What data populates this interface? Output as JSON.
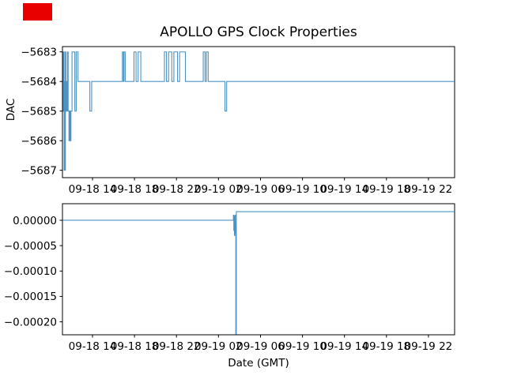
{
  "figure": {
    "title": "APOLLO GPS Clock Properties",
    "xlabel": "Date (GMT)",
    "background": "#ffffff",
    "marker_color": "#e80000"
  },
  "chart_data": [
    {
      "type": "line",
      "name": "dac-vs-time",
      "title": "APOLLO GPS Clock Properties",
      "ylabel": "DAC",
      "xlabel": "",
      "line_color": "#1f77b4",
      "grid": false,
      "legend": "none",
      "step": true,
      "xlim": [
        11.14,
        48.49
      ],
      "ylim": [
        -5687.25,
        -5682.82
      ],
      "xtick_values": [
        14,
        18,
        22,
        26,
        30,
        34,
        38,
        42,
        46
      ],
      "xtick_labels": [
        "09-18 14",
        "09-18 18",
        "09-18 22",
        "09-19 02",
        "09-19 06",
        "09-19 10",
        "09-19 14",
        "09-19 18",
        "09-19 22"
      ],
      "ytick_values": [
        -5683,
        -5684,
        -5685,
        -5686,
        -5687
      ],
      "ytick_labels": [
        "−5683",
        "−5684",
        "−5685",
        "−5686",
        "−5687"
      ],
      "x": [
        11.16,
        11.22,
        11.26,
        11.3,
        11.34,
        11.38,
        11.42,
        11.47,
        11.52,
        11.56,
        11.62,
        11.68,
        11.76,
        11.82,
        11.88,
        11.95,
        12.05,
        12.32,
        12.45,
        12.62,
        13.75,
        13.92,
        16.85,
        16.95,
        17.0,
        17.12,
        17.95,
        18.15,
        18.35,
        18.6,
        20.85,
        21.05,
        21.25,
        21.55,
        21.75,
        22.1,
        22.3,
        22.85,
        24.55,
        24.72,
        24.85,
        25.02,
        26.62,
        26.78,
        48.45
      ],
      "y": [
        -5683,
        -5685,
        -5683,
        -5687,
        -5684,
        -5687,
        -5683,
        -5685,
        -5684,
        -5685,
        -5683,
        -5685,
        -5686,
        -5685,
        -5686,
        -5685,
        -5683,
        -5685,
        -5683,
        -5684,
        -5685,
        -5684,
        -5683,
        -5684,
        -5683,
        -5684,
        -5683,
        -5684,
        -5683,
        -5684,
        -5683,
        -5684,
        -5683,
        -5684,
        -5683,
        -5684,
        -5683,
        -5684,
        -5683,
        -5684,
        -5683,
        -5684,
        -5685,
        -5684,
        -5684
      ]
    },
    {
      "type": "line",
      "name": "clock-offset-vs-time",
      "title": "",
      "ylabel": "",
      "xlabel": "Date (GMT)",
      "line_color": "#1f77b4",
      "grid": false,
      "legend": "none",
      "step": true,
      "xlim": [
        11.14,
        48.49
      ],
      "ylim": [
        -0.0002255,
        3.26e-05
      ],
      "xtick_values": [
        14,
        18,
        22,
        26,
        30,
        34,
        38,
        42,
        46
      ],
      "xtick_labels": [
        "09-18 14",
        "09-18 18",
        "09-18 22",
        "09-19 02",
        "09-19 06",
        "09-19 10",
        "09-19 14",
        "09-19 18",
        "09-19 22"
      ],
      "ytick_values": [
        0.0,
        -5e-05,
        -0.0001,
        -0.00015,
        -0.0002
      ],
      "ytick_labels": [
        "0.00000",
        "−0.00005",
        "−0.00010",
        "−0.00015",
        "−0.00020"
      ],
      "x": [
        11.16,
        27.38,
        27.42,
        27.46,
        27.49,
        27.52,
        27.55,
        27.58,
        27.61,
        27.63,
        27.65,
        27.7,
        48.45
      ],
      "y": [
        0,
        0,
        1e-05,
        -2e-05,
        8e-06,
        -3e-05,
        -1e-05,
        1e-05,
        -2.5e-05,
        -5e-06,
        -0.000224,
        1.7e-05,
        1.7e-05
      ]
    }
  ]
}
